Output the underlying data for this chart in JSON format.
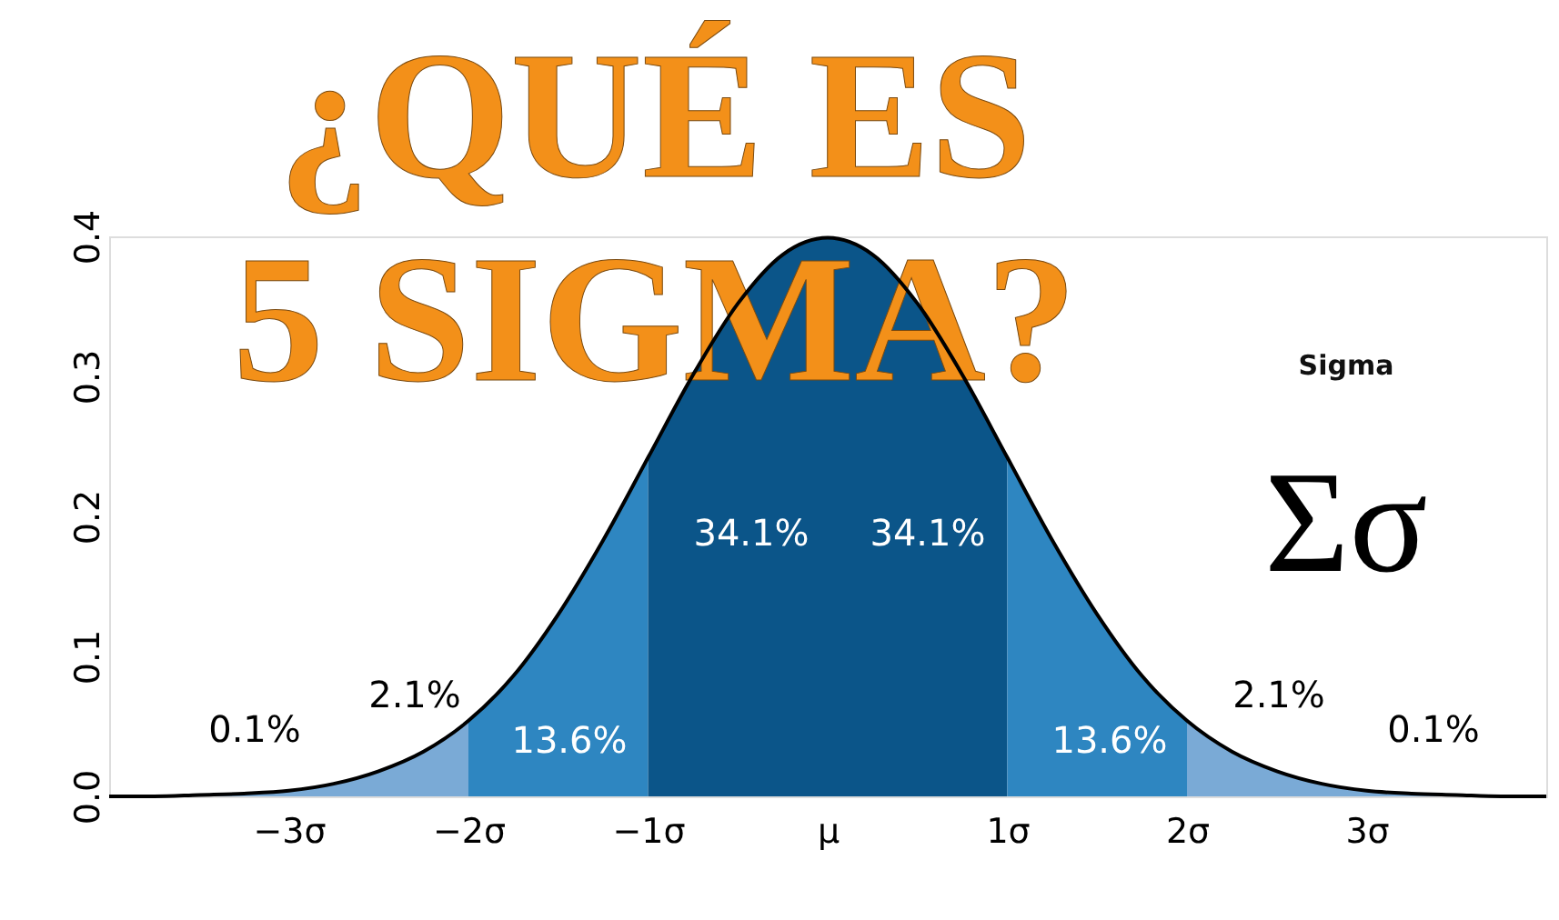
{
  "chart_data": {
    "type": "area",
    "title": "¿QUÉ ES 5 SIGMA?",
    "xlim": [
      -4,
      4
    ],
    "ylim": [
      0,
      0.4
    ],
    "xticks": [
      {
        "value": -3,
        "label": "−3σ"
      },
      {
        "value": -2,
        "label": "−2σ"
      },
      {
        "value": -1,
        "label": "−1σ"
      },
      {
        "value": 0,
        "label": "μ"
      },
      {
        "value": 1,
        "label": "1σ"
      },
      {
        "value": 2,
        "label": "2σ"
      },
      {
        "value": 3,
        "label": "3σ"
      }
    ],
    "yticks": [
      {
        "value": 0,
        "label": "0.0"
      },
      0.1,
      0.2,
      0.3,
      0.4
    ],
    "grid": false,
    "series": [
      {
        "color": "#7aaad6",
        "x": [
          -4,
          -3.75,
          -3.5,
          -3.25,
          -3,
          -2.75,
          -2.5,
          -2.25,
          -2
        ],
        "values": [
          0.0,
          0.0,
          0.001,
          0.002,
          0.004,
          0.009,
          0.018,
          0.032,
          0.054
        ]
      },
      {
        "color": "#2e86c1",
        "x": [
          -2,
          -1.75,
          -1.5,
          -1.25,
          -1
        ],
        "values": [
          0.054,
          0.086,
          0.13,
          0.183,
          0.242
        ]
      },
      {
        "color": "#0b5589",
        "x": [
          -1,
          -0.75,
          -0.5,
          -0.25,
          0,
          0.25,
          0.5,
          0.75,
          1
        ],
        "values": [
          0.242,
          0.301,
          0.352,
          0.387,
          0.399,
          0.387,
          0.352,
          0.301,
          0.242
        ]
      },
      {
        "color": "#2e86c1",
        "x": [
          1,
          1.25,
          1.5,
          1.75,
          2
        ],
        "values": [
          0.242,
          0.183,
          0.13,
          0.086,
          0.054
        ]
      },
      {
        "color": "#7aaad6",
        "x": [
          2,
          2.25,
          2.5,
          2.75,
          3,
          3.25,
          3.5,
          3.75,
          4
        ],
        "values": [
          0.054,
          0.032,
          0.018,
          0.009,
          0.004,
          0.002,
          0.001,
          0.0,
          0.0
        ]
      },
      {
        "type": "line",
        "color": "#000000",
        "x": [
          -4,
          -3.75,
          -3.5,
          -3.25,
          -3,
          -2.75,
          -2.5,
          -2.25,
          -2,
          -1.75,
          -1.5,
          -1.25,
          -1,
          -0.75,
          -0.5,
          -0.25,
          0,
          0.25,
          0.5,
          0.75,
          1,
          1.25,
          1.5,
          1.75,
          2,
          2.25,
          2.5,
          2.75,
          3,
          3.25,
          3.5,
          3.75,
          4
        ],
        "values": [
          0.0,
          0.0,
          0.001,
          0.002,
          0.004,
          0.009,
          0.018,
          0.032,
          0.054,
          0.086,
          0.13,
          0.183,
          0.242,
          0.301,
          0.352,
          0.387,
          0.399,
          0.387,
          0.352,
          0.301,
          0.242,
          0.183,
          0.13,
          0.086,
          0.054,
          0.032,
          0.018,
          0.009,
          0.004,
          0.002,
          0.001,
          0.0,
          0.0
        ]
      }
    ],
    "annotations": [
      "0.1%",
      "2.1%",
      "13.6%",
      "34.1%",
      "34.1%",
      "13.6%",
      "2.1%",
      "0.1%",
      "Sigma",
      "Σσ"
    ]
  }
}
